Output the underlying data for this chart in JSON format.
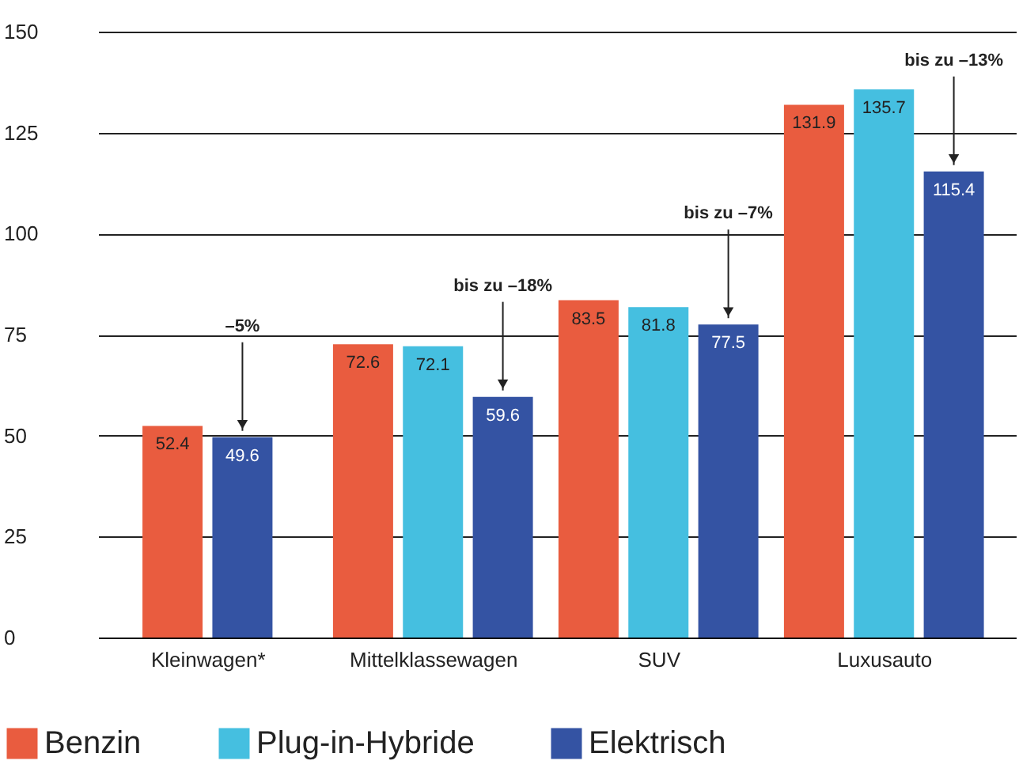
{
  "chart_data": {
    "type": "bar",
    "categories": [
      "Kleinwagen*",
      "Mittelklassewagen",
      "SUV",
      "Luxusauto"
    ],
    "series": [
      {
        "name": "Benzin",
        "color": "#e95c3f",
        "values": [
          52.4,
          72.6,
          83.5,
          131.9
        ]
      },
      {
        "name": "Plug-in-Hybride",
        "color": "#45bfe0",
        "values": [
          null,
          72.1,
          81.8,
          135.7
        ]
      },
      {
        "name": "Elektrisch",
        "color": "#3453a3",
        "values": [
          49.6,
          59.6,
          77.5,
          115.4
        ]
      }
    ],
    "ylim": [
      0,
      150
    ],
    "yticks": [
      0,
      25,
      50,
      75,
      100,
      125,
      150
    ],
    "grid": "y",
    "legend": "bottom",
    "data_labels": true,
    "annotations": [
      "–5%",
      "bis zu –18%",
      "bis zu –7%",
      "bis zu –13%"
    ]
  }
}
